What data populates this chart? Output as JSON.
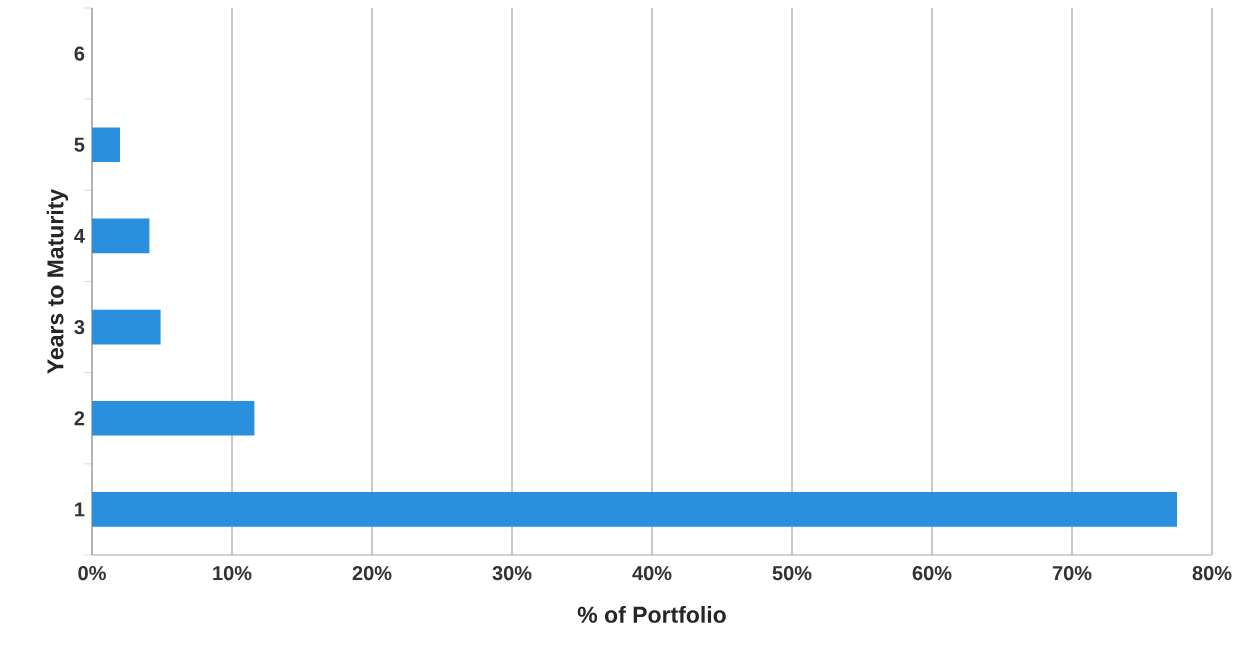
{
  "chart_data": {
    "type": "bar",
    "orientation": "horizontal",
    "xlabel": "% of Portfolio",
    "ylabel": "Years to Maturity",
    "categories": [
      "6",
      "5",
      "4",
      "3",
      "2",
      "1"
    ],
    "values": [
      0,
      2.0,
      4.1,
      4.9,
      11.6,
      77.5
    ],
    "color": "#2a8fdc",
    "xlim": [
      0,
      80
    ],
    "xticks": [
      {
        "value": 0,
        "label": "0%"
      },
      {
        "value": 10,
        "label": "10%"
      },
      {
        "value": 20,
        "label": "20%"
      },
      {
        "value": 30,
        "label": "30%"
      },
      {
        "value": 40,
        "label": "40%"
      },
      {
        "value": 50,
        "label": "50%"
      },
      {
        "value": 60,
        "label": "60%"
      },
      {
        "value": 70,
        "label": "70%"
      },
      {
        "value": 80,
        "label": "80%"
      }
    ],
    "grid": "x"
  }
}
